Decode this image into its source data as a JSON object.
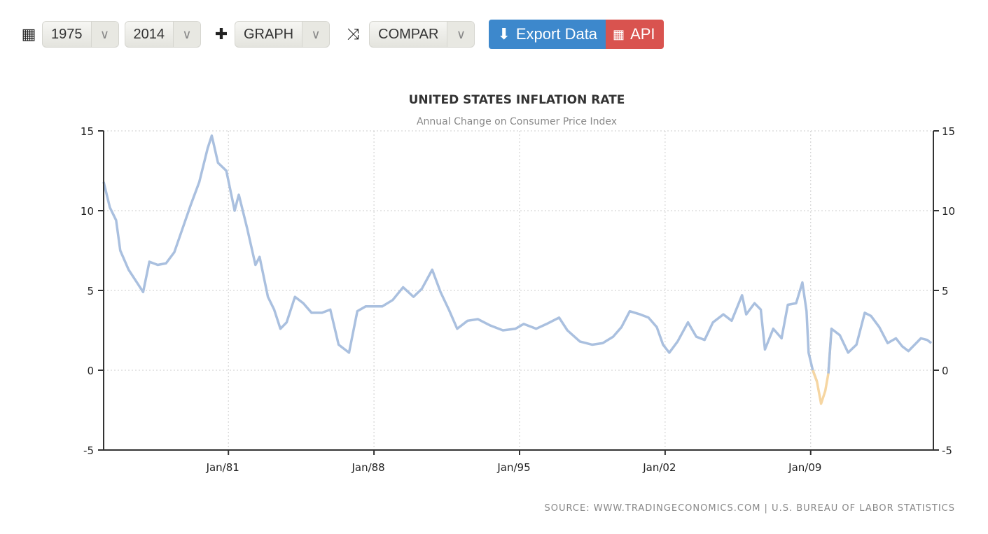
{
  "toolbar": {
    "start_year": "1975",
    "end_year": "2014",
    "graph_label": "GRAPH",
    "compare_label": "COMPAR",
    "export_label": "Export Data",
    "api_label": "API"
  },
  "colors": {
    "line": "#aac0df",
    "negative": "#f6d6a2",
    "export": "#3d88cc",
    "api": "#d9534f"
  },
  "chart_data": {
    "type": "line",
    "title": "UNITED STATES INFLATION RATE",
    "subtitle": "Annual Change on Consumer Price Index",
    "source": "SOURCE: WWW.TRADINGECONOMICS.COM | U.S. BUREAU OF LABOR STATISTICS",
    "xlim": [
      1975,
      2014.9
    ],
    "ylim": [
      -5,
      15
    ],
    "x_ticks": [
      {
        "v": 1981,
        "label": "Jan/81"
      },
      {
        "v": 1988,
        "label": "Jan/88"
      },
      {
        "v": 1995,
        "label": "Jan/95"
      },
      {
        "v": 2002,
        "label": "Jan/02"
      },
      {
        "v": 2009,
        "label": "Jan/09"
      }
    ],
    "y_ticks": [
      {
        "v": 15,
        "label": "15"
      },
      {
        "v": 10,
        "label": "10"
      },
      {
        "v": 5,
        "label": "5"
      },
      {
        "v": 0,
        "label": "0"
      },
      {
        "v": -5,
        "label": "-5"
      }
    ],
    "series": [
      {
        "name": "Inflation Rate",
        "points": [
          [
            1975.0,
            11.8
          ],
          [
            1975.3,
            10.2
          ],
          [
            1975.6,
            9.4
          ],
          [
            1975.8,
            7.5
          ],
          [
            1976.2,
            6.3
          ],
          [
            1976.6,
            5.5
          ],
          [
            1976.9,
            4.9
          ],
          [
            1977.2,
            6.8
          ],
          [
            1977.6,
            6.6
          ],
          [
            1978.0,
            6.7
          ],
          [
            1978.4,
            7.4
          ],
          [
            1978.8,
            8.9
          ],
          [
            1979.2,
            10.4
          ],
          [
            1979.6,
            11.8
          ],
          [
            1980.0,
            13.9
          ],
          [
            1980.2,
            14.7
          ],
          [
            1980.5,
            13.0
          ],
          [
            1980.9,
            12.5
          ],
          [
            1981.3,
            10.0
          ],
          [
            1981.5,
            11.0
          ],
          [
            1981.9,
            8.9
          ],
          [
            1982.3,
            6.6
          ],
          [
            1982.5,
            7.1
          ],
          [
            1982.9,
            4.6
          ],
          [
            1983.2,
            3.8
          ],
          [
            1983.5,
            2.6
          ],
          [
            1983.8,
            3.0
          ],
          [
            1984.2,
            4.6
          ],
          [
            1984.6,
            4.2
          ],
          [
            1985.0,
            3.6
          ],
          [
            1985.5,
            3.6
          ],
          [
            1985.9,
            3.8
          ],
          [
            1986.3,
            1.6
          ],
          [
            1986.8,
            1.1
          ],
          [
            1987.2,
            3.7
          ],
          [
            1987.6,
            4.0
          ],
          [
            1988.0,
            4.0
          ],
          [
            1988.4,
            4.0
          ],
          [
            1988.9,
            4.4
          ],
          [
            1989.4,
            5.2
          ],
          [
            1989.9,
            4.6
          ],
          [
            1990.3,
            5.1
          ],
          [
            1990.8,
            6.3
          ],
          [
            1991.2,
            4.9
          ],
          [
            1991.6,
            3.8
          ],
          [
            1992.0,
            2.6
          ],
          [
            1992.5,
            3.1
          ],
          [
            1993.0,
            3.2
          ],
          [
            1993.6,
            2.8
          ],
          [
            1994.2,
            2.5
          ],
          [
            1994.8,
            2.6
          ],
          [
            1995.2,
            2.9
          ],
          [
            1995.8,
            2.6
          ],
          [
            1996.3,
            2.9
          ],
          [
            1996.9,
            3.3
          ],
          [
            1997.3,
            2.5
          ],
          [
            1997.9,
            1.8
          ],
          [
            1998.5,
            1.6
          ],
          [
            1999.0,
            1.7
          ],
          [
            1999.5,
            2.1
          ],
          [
            1999.9,
            2.7
          ],
          [
            2000.3,
            3.7
          ],
          [
            2000.8,
            3.5
          ],
          [
            2001.2,
            3.3
          ],
          [
            2001.6,
            2.7
          ],
          [
            2001.9,
            1.6
          ],
          [
            2002.2,
            1.1
          ],
          [
            2002.6,
            1.8
          ],
          [
            2003.1,
            3.0
          ],
          [
            2003.5,
            2.1
          ],
          [
            2003.9,
            1.9
          ],
          [
            2004.3,
            3.0
          ],
          [
            2004.8,
            3.5
          ],
          [
            2005.2,
            3.1
          ],
          [
            2005.7,
            4.7
          ],
          [
            2005.9,
            3.5
          ],
          [
            2006.3,
            4.2
          ],
          [
            2006.6,
            3.8
          ],
          [
            2006.8,
            1.3
          ],
          [
            2007.2,
            2.6
          ],
          [
            2007.6,
            2.0
          ],
          [
            2007.9,
            4.1
          ],
          [
            2008.3,
            4.2
          ],
          [
            2008.6,
            5.5
          ],
          [
            2008.8,
            3.7
          ],
          [
            2008.9,
            1.1
          ],
          [
            2009.1,
            0.0
          ],
          [
            2009.3,
            -0.7
          ],
          [
            2009.5,
            -2.1
          ],
          [
            2009.7,
            -1.3
          ],
          [
            2009.85,
            -0.2
          ],
          [
            2010.0,
            2.6
          ],
          [
            2010.4,
            2.2
          ],
          [
            2010.8,
            1.1
          ],
          [
            2011.2,
            1.6
          ],
          [
            2011.6,
            3.6
          ],
          [
            2011.9,
            3.4
          ],
          [
            2012.3,
            2.7
          ],
          [
            2012.7,
            1.7
          ],
          [
            2013.1,
            2.0
          ],
          [
            2013.4,
            1.5
          ],
          [
            2013.7,
            1.2
          ],
          [
            2014.0,
            1.6
          ],
          [
            2014.3,
            2.0
          ],
          [
            2014.6,
            1.9
          ],
          [
            2014.8,
            1.7
          ]
        ]
      }
    ]
  }
}
